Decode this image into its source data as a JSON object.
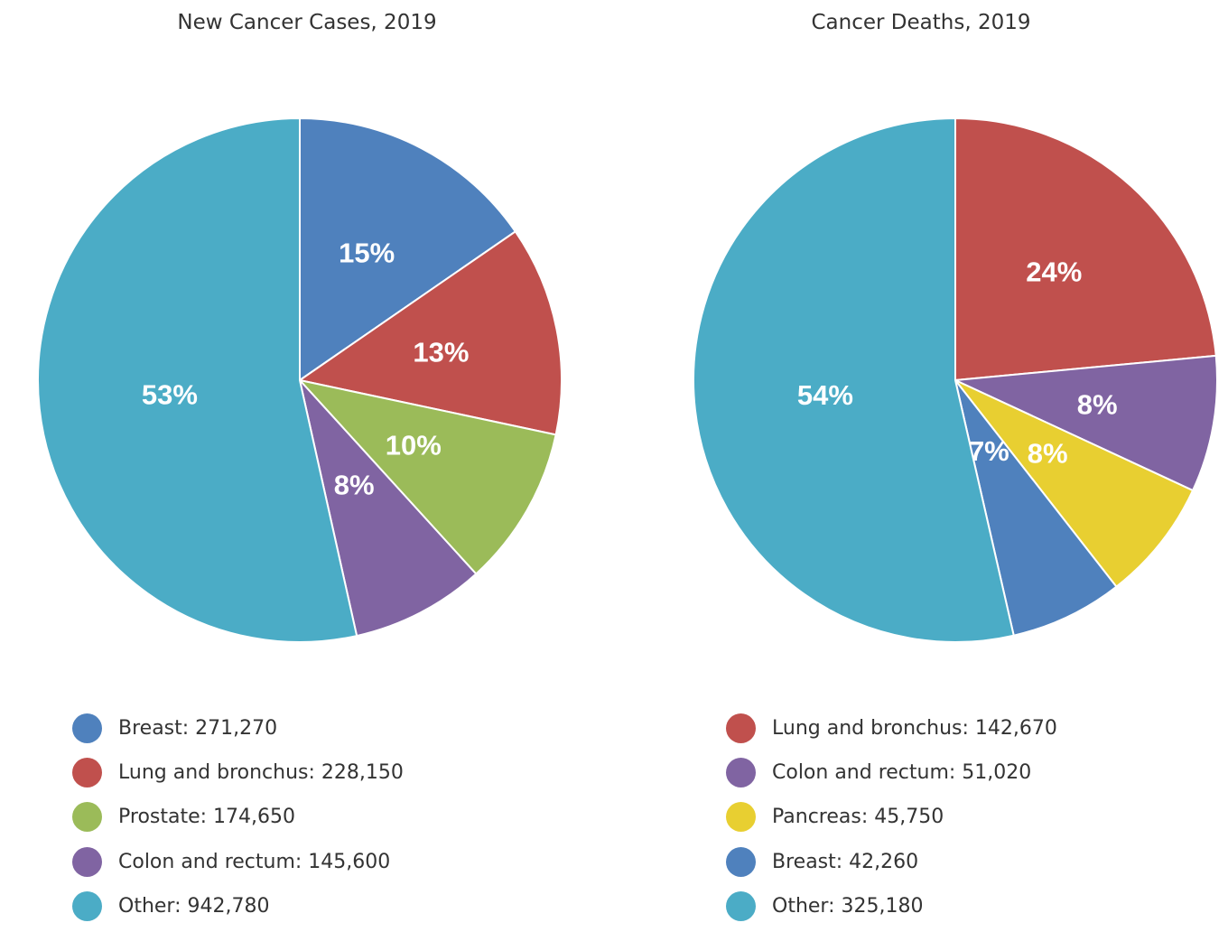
{
  "chart_data": [
    {
      "type": "pie",
      "title": "New Cancer Cases, 2019",
      "slices": [
        {
          "label": "Breast",
          "value": 271270,
          "value_label": "271,270",
          "percent_label": "15%",
          "color": "#4f81bd"
        },
        {
          "label": "Lung and bronchus",
          "value": 228150,
          "value_label": "228,150",
          "percent_label": "13%",
          "color": "#c0504d"
        },
        {
          "label": "Prostate",
          "value": 174650,
          "value_label": "174,650",
          "percent_label": "10%",
          "color": "#9bbb59"
        },
        {
          "label": "Colon and rectum",
          "value": 145600,
          "value_label": "145,600",
          "percent_label": "8%",
          "color": "#8064a2"
        },
        {
          "label": "Other",
          "value": 942780,
          "value_label": "942,780",
          "percent_label": "53%",
          "color": "#4bacc6"
        }
      ]
    },
    {
      "type": "pie",
      "title": "Cancer Deaths, 2019",
      "slices": [
        {
          "label": "Lung and bronchus",
          "value": 142670,
          "value_label": "142,670",
          "percent_label": "24%",
          "color": "#c0504d"
        },
        {
          "label": "Colon and rectum",
          "value": 51020,
          "value_label": "51,020",
          "percent_label": "8%",
          "color": "#8064a2"
        },
        {
          "label": "Pancreas",
          "value": 45750,
          "value_label": "45,750",
          "percent_label": "8%",
          "color": "#e8cf31"
        },
        {
          "label": "Breast",
          "value": 42260,
          "value_label": "42,260",
          "percent_label": "7%",
          "color": "#4f81bd"
        },
        {
          "label": "Other",
          "value": 325180,
          "value_label": "325,180",
          "percent_label": "54%",
          "color": "#4bacc6"
        }
      ]
    }
  ]
}
